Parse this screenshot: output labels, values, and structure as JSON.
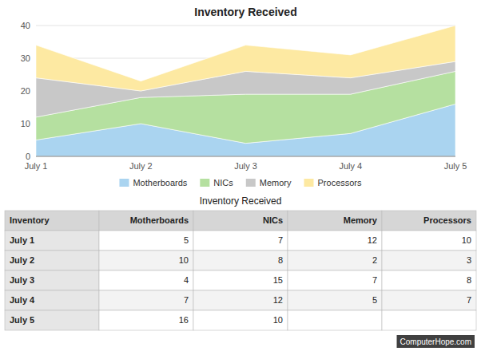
{
  "chart_data": [
    {
      "type": "area",
      "title": "Inventory Received",
      "stacked": true,
      "categories": [
        "July 1",
        "July 2",
        "July 3",
        "July 4",
        "July 5"
      ],
      "series": [
        {
          "name": "Motherboards",
          "color": "#aad4f0",
          "values": [
            5,
            10,
            4,
            7,
            16
          ]
        },
        {
          "name": "NICs",
          "color": "#b5e0a0",
          "values": [
            7,
            8,
            15,
            12,
            10
          ]
        },
        {
          "name": "Memory",
          "color": "#c8c8c8",
          "values": [
            12,
            2,
            7,
            5,
            3
          ]
        },
        {
          "name": "Processors",
          "color": "#fde9a2",
          "values": [
            10,
            3,
            8,
            7,
            11
          ]
        }
      ],
      "ylim": [
        0,
        40
      ],
      "yticks": [
        0,
        10,
        20,
        30,
        40
      ],
      "grid": true,
      "legend": "bottom"
    },
    {
      "type": "table",
      "title": "Inventory Received",
      "xlabel": "Inventory",
      "categories": [
        "July 1",
        "July 2",
        "July 3",
        "July 4",
        "July 5"
      ],
      "series": [
        {
          "name": "Motherboards",
          "values": [
            5,
            10,
            4,
            7,
            16
          ]
        },
        {
          "name": "NICs",
          "values": [
            7,
            8,
            15,
            12,
            10
          ]
        },
        {
          "name": "Memory",
          "values": [
            12,
            2,
            7,
            5,
            null
          ]
        },
        {
          "name": "Processors",
          "values": [
            10,
            3,
            8,
            7,
            null
          ]
        }
      ],
      "annotations": [
        {
          "text": "ComputerHope.com"
        }
      ]
    }
  ]
}
